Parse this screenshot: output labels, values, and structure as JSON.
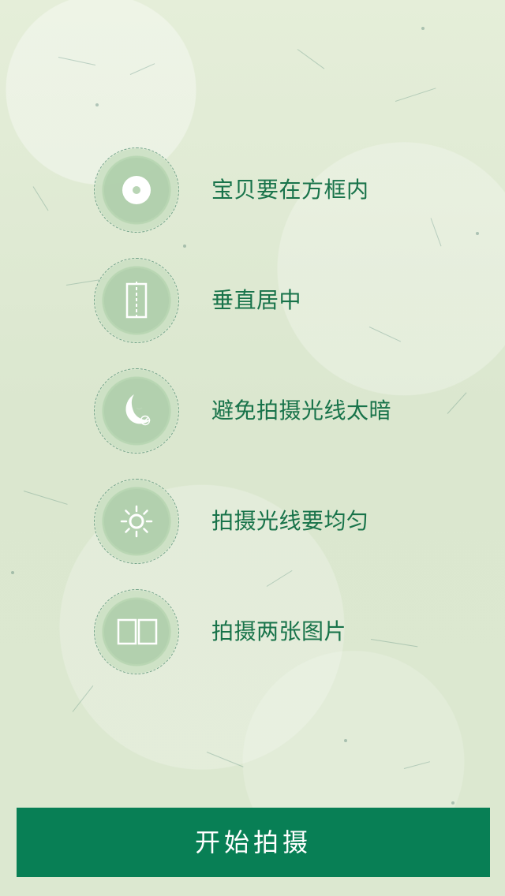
{
  "tips": [
    {
      "icon": "target-icon",
      "text": "宝贝要在方框内"
    },
    {
      "icon": "vertical-center-icon",
      "text": "垂直居中"
    },
    {
      "icon": "moon-icon",
      "text": "避免拍摄光线太暗"
    },
    {
      "icon": "sun-icon",
      "text": "拍摄光线要均匀"
    },
    {
      "icon": "two-pictures-icon",
      "text": "拍摄两张图片"
    }
  ],
  "start_button": {
    "label": "开始拍摄"
  },
  "colors": {
    "background": "#dfe9d3",
    "text_green": "#18734a",
    "button_green": "#087f55",
    "white": "#ffffff"
  }
}
